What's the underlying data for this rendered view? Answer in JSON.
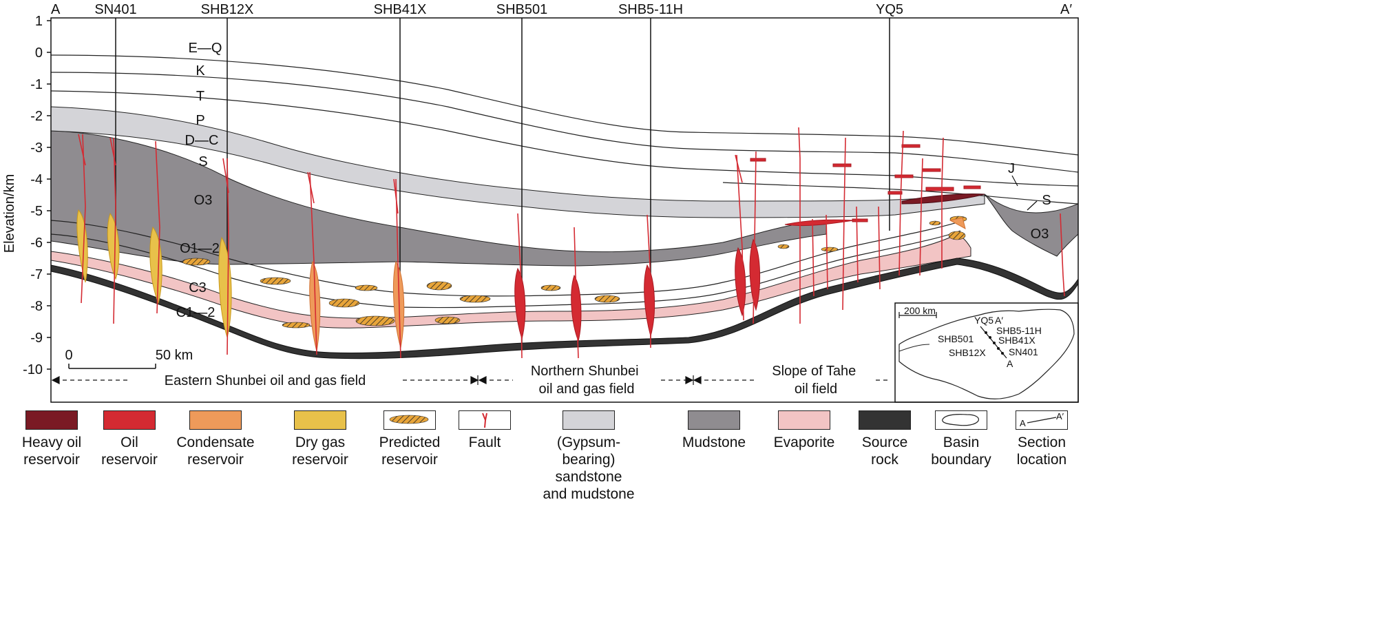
{
  "section": {
    "start_label": "A",
    "end_label": "A′",
    "wells": [
      "SN401",
      "SHB12X",
      "SHB41X",
      "SHB501",
      "SHB5-11H",
      "YQ5"
    ],
    "y_axis_label": "Elevation/km",
    "y_ticks": [
      "1",
      "0",
      "-1",
      "-2",
      "-3",
      "-4",
      "-5",
      "-6",
      "-7",
      "-8",
      "-9",
      "-10"
    ],
    "strata_labels": [
      "E—Q",
      "K",
      "T",
      "P",
      "D—C",
      "S",
      "O3",
      "O1—2",
      "C3",
      "C1—2",
      "J",
      "S",
      "O3"
    ],
    "scale_bar": {
      "zero": "0",
      "end": "50 km"
    },
    "fields": [
      "Eastern Shunbei oil and gas field",
      "Northern Shunbei\noil and gas field",
      "Slope of Tahe\noil field"
    ]
  },
  "inset_map": {
    "scale": "200 km",
    "labels": [
      "YQ5",
      "A′",
      "SHB5-11H",
      "SHB501",
      "SHB41X",
      "SHB12X",
      "SN401",
      "A"
    ]
  },
  "legend": [
    {
      "label": "Heavy oil\nreservoir",
      "icon": "heavy-oil-swatch",
      "color": "#7a1a24"
    },
    {
      "label": "Oil\nreservoir",
      "icon": "oil-swatch",
      "color": "#d42a32"
    },
    {
      "label": "Condensate\nreservoir",
      "icon": "condensate-swatch",
      "color": "#ee9a5a"
    },
    {
      "label": "Dry gas\nreservoir",
      "icon": "dry-gas-swatch",
      "color": "#e8c14a"
    },
    {
      "label": "Predicted\nreservoir",
      "icon": "predicted-hatch-swatch",
      "color": "#e8a53a"
    },
    {
      "label": "Fault",
      "icon": "fault-swatch",
      "color": "#d42a32"
    },
    {
      "label": "(Gypsum-bearing)\nsandstone\nand mudstone",
      "icon": "sandstone-swatch",
      "color": "#d4d4d8"
    },
    {
      "label": "Mudstone",
      "icon": "mudstone-swatch",
      "color": "#8f8c90"
    },
    {
      "label": "Evaporite",
      "icon": "evaporite-swatch",
      "color": "#f2c4c4"
    },
    {
      "label": "Source\nrock",
      "icon": "source-rock-swatch",
      "color": "#333333"
    },
    {
      "label": "Basin\nboundary",
      "icon": "basin-boundary-swatch",
      "color": "#222222"
    },
    {
      "label": "Section\nlocation",
      "icon": "section-location-swatch",
      "color": "#222222"
    }
  ]
}
